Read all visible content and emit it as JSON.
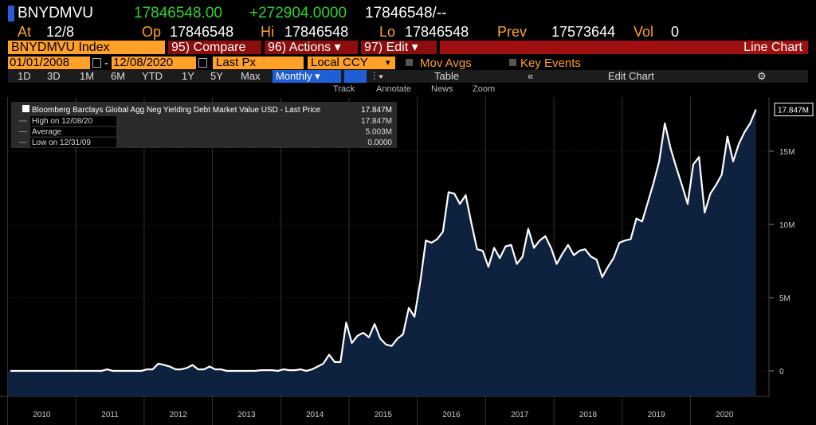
{
  "header": {
    "ticker": "BNYDMVU",
    "last": "17846548.00",
    "change": "+272904.0000",
    "bid_ask": "17846548/--"
  },
  "quote": {
    "at_label": "At",
    "at": "12/8",
    "op_label": "Op",
    "op": "17846548",
    "hi_label": "Hi",
    "hi": "17846548",
    "lo_label": "Lo",
    "lo": "17846548",
    "prev_label": "Prev",
    "prev": "17573644",
    "vol_label": "Vol",
    "vol": "0"
  },
  "toolbar": {
    "security": "BNYDMVU Index",
    "buttons": [
      "95) Compare",
      "96) Actions ▾",
      "97) Edit ▾"
    ],
    "chart_type": "Line Chart"
  },
  "range": {
    "start": "01/01/2008",
    "end": "12/08/2020",
    "field": "Last Px",
    "currency": "Local CCY",
    "options": [
      "Mov Avgs",
      "Key Events"
    ]
  },
  "periods": {
    "items": [
      "1D",
      "3D",
      "1M",
      "6M",
      "YTD",
      "1Y",
      "5Y",
      "Max"
    ],
    "frequency": "Monthly ▾",
    "table": "Table",
    "edit_chart": "Edit Chart"
  },
  "tools": [
    "Track",
    "Annotate",
    "News",
    "Zoom"
  ],
  "chart_data": {
    "type": "area",
    "series": [
      {
        "name": "Bloomberg Barclays Global Agg Neg Yielding Debt Market Value USD - Last Price",
        "color": "#ffffff",
        "fill": "#0e2240",
        "values": [
          0,
          0,
          0,
          0,
          0,
          0,
          0,
          0,
          0,
          0,
          0,
          0,
          0,
          0,
          0,
          0,
          0,
          0.1,
          0,
          0,
          0,
          0,
          0,
          0,
          0.1,
          0.1,
          0.5,
          0.4,
          0.3,
          0.1,
          0.1,
          0.2,
          0.4,
          0.1,
          0.1,
          0.3,
          0.1,
          0.1,
          0,
          0,
          0,
          0,
          0,
          0,
          0.05,
          0.05,
          0.05,
          0,
          0.1,
          0.05,
          0.05,
          0.1,
          0,
          0.1,
          0.3,
          0.5,
          1.1,
          0.6,
          0.6,
          3.3,
          1.9,
          2.4,
          2.6,
          2.3,
          3.2,
          2.2,
          1.8,
          1.7,
          2.2,
          2.5,
          4.3,
          3.7,
          6.0,
          8.9,
          8.75,
          9.0,
          9.5,
          12.2,
          12.1,
          11.4,
          12.0,
          10.1,
          8.3,
          8.2,
          7.1,
          8.4,
          7.7,
          8.5,
          8.6,
          7.3,
          7.8,
          9.7,
          8.4,
          8.9,
          9.2,
          8.4,
          7.3,
          8.0,
          8.6,
          7.9,
          8.2,
          8.3,
          7.8,
          7.6,
          6.4,
          7.1,
          7.7,
          8.75,
          8.9,
          9.0,
          10.4,
          10.2,
          11.5,
          12.8,
          14.3,
          16.9,
          15.2,
          13.9,
          12.7,
          11.4,
          14.1,
          14.6,
          10.8,
          12.1,
          12.7,
          13.4,
          16.0,
          14.3,
          15.5,
          16.3,
          16.9,
          17.847
        ]
      }
    ],
    "legend_value": "17.847M",
    "stats": [
      {
        "label": "High on 12/08/20",
        "value": "17.847M"
      },
      {
        "label": "Average",
        "value": "5.003M"
      },
      {
        "label": "Low on 12/31/09",
        "value": "0.0000"
      }
    ],
    "last_label": "17.847M",
    "xlim": [
      2010,
      2021.15
    ],
    "xticks": [
      2010,
      2011,
      2012,
      2013,
      2014,
      2015,
      2016,
      2017,
      2018,
      2019,
      2020
    ],
    "ylim": [
      -1.74,
      18.53
    ],
    "yticks": [
      0,
      {
        "value": 5,
        "label": "5M"
      },
      {
        "value": 10,
        "label": "10M"
      },
      {
        "value": 15,
        "label": "15M"
      }
    ],
    "grid": true
  }
}
